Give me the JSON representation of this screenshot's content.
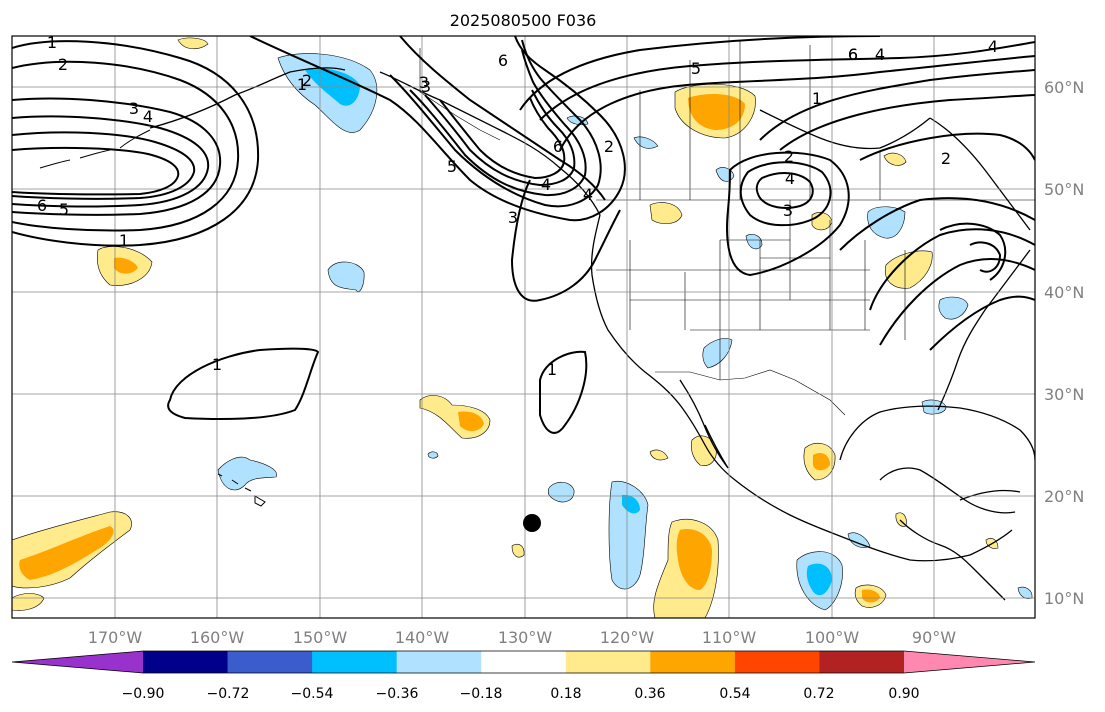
{
  "title": "2025080500 F036",
  "lon_labels": [
    "170°W",
    "160°W",
    "150°W",
    "140°W",
    "130°W",
    "120°W",
    "110°W",
    "100°W",
    "90°W"
  ],
  "lat_labels": [
    "60°N",
    "50°N",
    "40°N",
    "30°N",
    "20°N",
    "10°N"
  ],
  "colorbar": {
    "ticks": [
      "−0.90",
      "−0.72",
      "−0.54",
      "−0.36",
      "−0.18",
      "0.18",
      "0.36",
      "0.54",
      "0.72",
      "0.90"
    ],
    "colors": [
      "#9932cc",
      "#00008b",
      "#3a5ccc",
      "#00bfff",
      "#b0e2ff",
      "#ffffff",
      "#ffea8c",
      "#ffa500",
      "#ff4500",
      "#b22222",
      "#ff88b0"
    ]
  },
  "contour_labels": [
    "1",
    "2",
    "3",
    "4",
    "6",
    "5",
    "1",
    "3",
    "4",
    "6",
    "5",
    "1",
    "1",
    "1",
    "6",
    "5",
    "2",
    "6",
    "3",
    "2",
    "4",
    "3",
    "1",
    "2",
    "6",
    "4",
    "4",
    "2",
    "3",
    "4"
  ],
  "marker": "station-dot"
}
